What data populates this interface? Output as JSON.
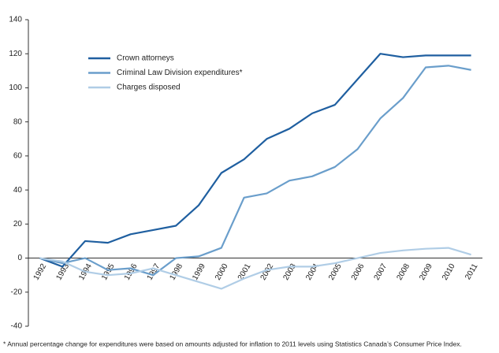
{
  "chart_data": {
    "type": "line",
    "categories": [
      "1992",
      "1993",
      "1994",
      "1995",
      "1996",
      "1997",
      "1998",
      "1999",
      "2000",
      "2001",
      "2002",
      "2003",
      "2004",
      "2005",
      "2006",
      "2007",
      "2008",
      "2009",
      "2010",
      "2011"
    ],
    "series": [
      {
        "name": "Crown attorneys",
        "color": "#1f5fa0",
        "values": [
          0,
          -5,
          10,
          9,
          14,
          16.5,
          19,
          31,
          50,
          58,
          70,
          76,
          85,
          90,
          105,
          120,
          118,
          119,
          119,
          119
        ]
      },
      {
        "name": "Criminal Law Division expenditures*",
        "color": "#6a9ecb",
        "values": [
          0,
          -3,
          0,
          -7,
          -6,
          -10,
          0,
          1,
          6,
          35.5,
          38,
          45.5,
          48,
          53.5,
          64,
          82,
          94,
          112,
          113,
          110.5
        ]
      },
      {
        "name": "Charges disposed",
        "color": "#b0cde6",
        "values": [
          0,
          -2,
          -8,
          -10,
          -9,
          -6,
          -10,
          -14,
          -18,
          -12,
          -7,
          -5,
          -5,
          -3,
          0,
          3,
          4.5,
          5.5,
          6,
          2
        ]
      }
    ],
    "ylim": [
      -40,
      140
    ],
    "yticks": [
      -40,
      -20,
      0,
      20,
      40,
      60,
      80,
      100,
      120,
      140
    ],
    "legend": "upper left",
    "footnote": "* Annual percentage change for expenditures were based on amounts adjusted for inflation to 2011 levels using Statistics Canada’s Consumer Price Index."
  }
}
